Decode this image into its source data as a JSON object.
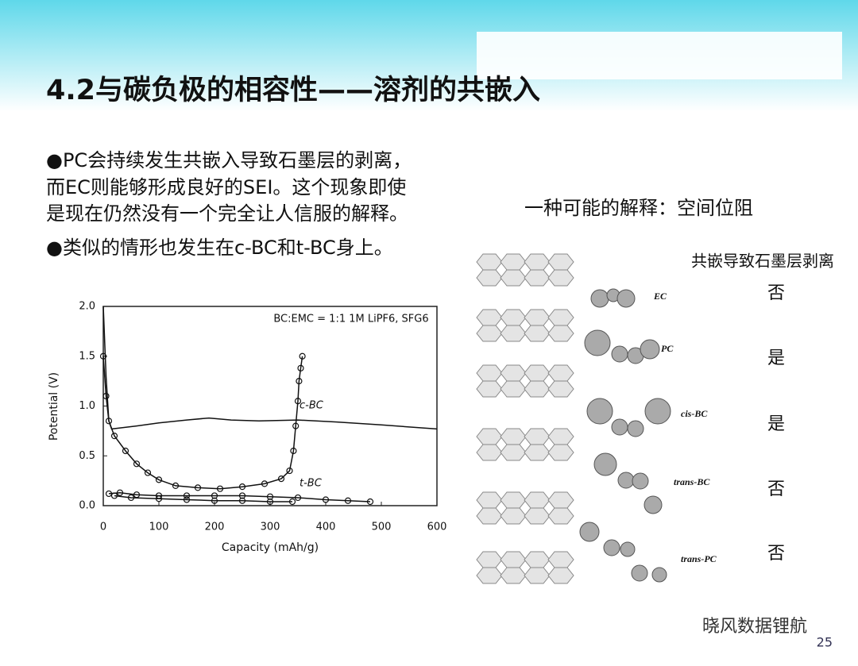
{
  "title": "4.2与碳负极的相容性——溶剂的共嵌入",
  "bullets": [
    [
      "●PC会持续发生共嵌入导致石墨层的剥离，",
      "而EC则能够形成良好的SEI。这个现象即使",
      "是现在仍然没有一个完全让人信服的解释。"
    ],
    [
      "●类似的情形也发生在c-BC和t-BC身上。"
    ]
  ],
  "figure": {
    "type": "line",
    "annotation": "BC:EMC = 1:1 1M LiPF6, SFG6",
    "x_label": "Capacity (mAh/g)",
    "y_label": "Potential (V)",
    "xlim": [
      0,
      600
    ],
    "ylim": [
      0,
      2.0
    ],
    "xticks": [
      0,
      100,
      200,
      300,
      400,
      500,
      600
    ],
    "yticks": [
      {
        "value": 0,
        "label": "0.0"
      },
      0.5,
      {
        "value": 1,
        "label": "1.0"
      },
      1.5,
      {
        "value": 2,
        "label": "2.0"
      }
    ],
    "series": [
      {
        "name": "c-BC",
        "color": "#111111",
        "markers": false,
        "x": [
          0,
          5,
          10,
          15,
          30,
          60,
          100,
          150,
          190,
          230,
          280,
          350,
          420,
          500,
          600
        ],
        "values": [
          2.0,
          1.3,
          0.85,
          0.77,
          0.78,
          0.8,
          0.83,
          0.86,
          0.88,
          0.86,
          0.85,
          0.86,
          0.84,
          0.81,
          0.77
        ]
      },
      {
        "color": "#111111",
        "markers": true,
        "x": [
          0,
          5,
          10,
          20,
          40,
          60,
          80,
          100,
          130,
          170,
          210,
          250,
          290,
          320,
          335,
          342,
          346,
          350,
          352,
          355,
          358
        ],
        "values": [
          1.5,
          1.1,
          0.85,
          0.7,
          0.55,
          0.42,
          0.33,
          0.26,
          0.2,
          0.18,
          0.17,
          0.19,
          0.22,
          0.27,
          0.35,
          0.55,
          0.8,
          1.05,
          1.25,
          1.38,
          1.5
        ]
      },
      {
        "name": "t-BC",
        "color": "#111111",
        "markers": true,
        "x": [
          10,
          30,
          60,
          100,
          150,
          200,
          250,
          300,
          350,
          400,
          440,
          480
        ],
        "values": [
          0.12,
          0.13,
          0.11,
          0.1,
          0.1,
          0.1,
          0.1,
          0.09,
          0.08,
          0.06,
          0.05,
          0.04
        ]
      },
      {
        "color": "#111111",
        "markers": true,
        "x": [
          20,
          50,
          100,
          150,
          200,
          250,
          300,
          340
        ],
        "values": [
          0.1,
          0.08,
          0.07,
          0.06,
          0.05,
          0.05,
          0.04,
          0.04
        ]
      }
    ]
  },
  "explanation": {
    "title": "一种可能的解释：空间位阻",
    "column_header": "共嵌导致石墨层剥离",
    "rows": [
      {
        "molecule": "EC",
        "answer": "否"
      },
      {
        "molecule": "PC",
        "answer": "是"
      },
      {
        "molecule": "cis-BC",
        "answer": "是"
      },
      {
        "molecule": "trans-BC",
        "answer": "否"
      },
      {
        "molecule": "trans-PC",
        "answer": "否"
      }
    ]
  },
  "watermark": "晓风数据锂航",
  "page_number": 25
}
